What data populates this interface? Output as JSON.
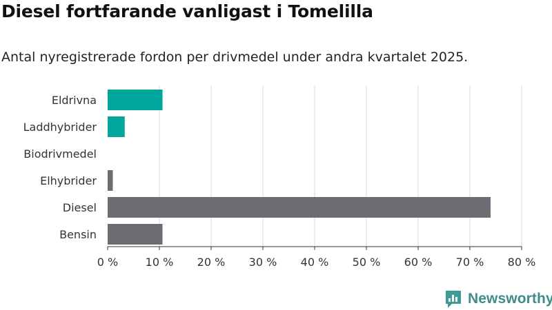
{
  "title": "Diesel fortfarande vanligast i Tomelilla",
  "subtitle": "Antal nyregistrerade fordon per drivmedel under andra kvartalet 2025.",
  "brand": {
    "name": "Newsworthy",
    "icon": "newsworthy-logo-icon",
    "color": "#3d9a96"
  },
  "colors": {
    "electric": "#00a69c",
    "other": "#6c6c73",
    "grid": "#d9d9d9",
    "axis": "#333333"
  },
  "chart_data": {
    "type": "bar",
    "orientation": "horizontal",
    "categories": [
      "Eldrivna",
      "Laddhybrider",
      "Biodrivmedel",
      "Elhybrider",
      "Diesel",
      "Bensin"
    ],
    "values": [
      10.6,
      3.3,
      0,
      1.0,
      74.0,
      10.6
    ],
    "bar_colors": [
      "#00a69c",
      "#00a69c",
      "#00a69c",
      "#6c6c73",
      "#6c6c73",
      "#6c6c73"
    ],
    "xlim": [
      0,
      80
    ],
    "xticks": [
      0,
      10,
      20,
      30,
      40,
      50,
      60,
      70,
      80
    ],
    "tick_suffix": " %",
    "grid": true
  }
}
